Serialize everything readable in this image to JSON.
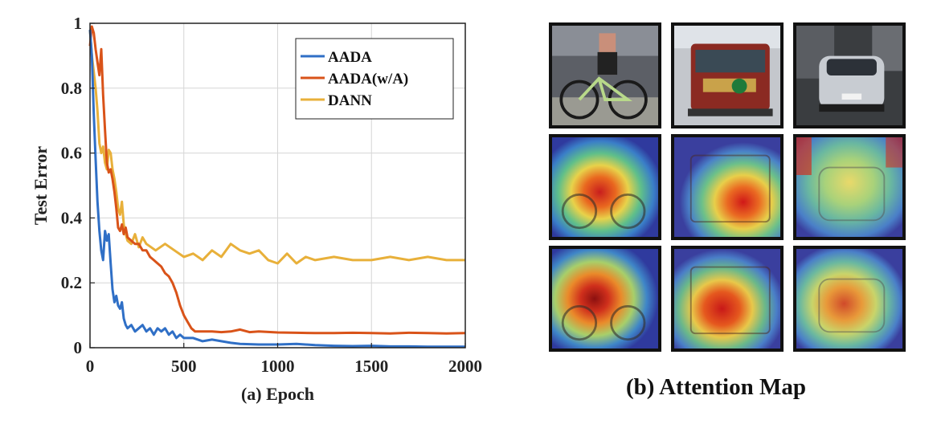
{
  "chart_data": {
    "type": "line",
    "xlabel": "(a) Epoch",
    "ylabel": "Test Error",
    "xlim": [
      0,
      2000
    ],
    "ylim": [
      0,
      1
    ],
    "x_ticks": [
      "0",
      "500",
      "1000",
      "1500",
      "2000"
    ],
    "y_ticks": [
      "0",
      "0.2",
      "0.4",
      "0.6",
      "0.8",
      "1"
    ],
    "grid": true,
    "legend_position": "top-right",
    "series": [
      {
        "name": "AADA",
        "color": "#2f6fc6",
        "x": [
          0,
          10,
          20,
          30,
          40,
          50,
          60,
          70,
          80,
          90,
          100,
          110,
          120,
          130,
          140,
          150,
          160,
          170,
          180,
          190,
          200,
          220,
          240,
          260,
          280,
          300,
          320,
          340,
          360,
          380,
          400,
          420,
          440,
          460,
          480,
          500,
          550,
          600,
          650,
          700,
          750,
          800,
          900,
          1000,
          1100,
          1200,
          1300,
          1400,
          1500,
          1600,
          1700,
          1800,
          1900,
          2000
        ],
        "values": [
          0.98,
          0.9,
          0.72,
          0.58,
          0.45,
          0.36,
          0.3,
          0.27,
          0.36,
          0.33,
          0.35,
          0.26,
          0.18,
          0.14,
          0.16,
          0.13,
          0.12,
          0.14,
          0.09,
          0.07,
          0.06,
          0.07,
          0.05,
          0.06,
          0.07,
          0.05,
          0.06,
          0.04,
          0.06,
          0.05,
          0.06,
          0.04,
          0.05,
          0.03,
          0.04,
          0.03,
          0.03,
          0.02,
          0.025,
          0.02,
          0.015,
          0.012,
          0.01,
          0.01,
          0.012,
          0.008,
          0.006,
          0.005,
          0.006,
          0.004,
          0.004,
          0.003,
          0.003,
          0.003
        ]
      },
      {
        "name": "AADA(w/A)",
        "color": "#d95319",
        "x": [
          0,
          10,
          20,
          30,
          40,
          50,
          60,
          70,
          80,
          90,
          100,
          110,
          120,
          130,
          140,
          150,
          160,
          170,
          180,
          190,
          200,
          220,
          240,
          260,
          280,
          300,
          320,
          340,
          360,
          380,
          400,
          420,
          440,
          460,
          480,
          500,
          520,
          540,
          560,
          600,
          650,
          700,
          750,
          800,
          850,
          900,
          1000,
          1100,
          1200,
          1300,
          1400,
          1500,
          1600,
          1700,
          1800,
          1900,
          2000
        ],
        "values": [
          0.93,
          0.99,
          0.97,
          0.92,
          0.88,
          0.84,
          0.92,
          0.78,
          0.67,
          0.57,
          0.54,
          0.55,
          0.52,
          0.48,
          0.43,
          0.37,
          0.36,
          0.38,
          0.35,
          0.37,
          0.34,
          0.33,
          0.32,
          0.32,
          0.3,
          0.3,
          0.28,
          0.27,
          0.26,
          0.25,
          0.23,
          0.22,
          0.2,
          0.17,
          0.13,
          0.1,
          0.08,
          0.06,
          0.05,
          0.05,
          0.05,
          0.048,
          0.05,
          0.056,
          0.048,
          0.05,
          0.047,
          0.046,
          0.045,
          0.045,
          0.046,
          0.045,
          0.044,
          0.046,
          0.045,
          0.044,
          0.045
        ]
      },
      {
        "name": "DANN",
        "color": "#e8b03a",
        "x": [
          0,
          10,
          20,
          30,
          40,
          50,
          60,
          70,
          80,
          90,
          100,
          110,
          120,
          130,
          140,
          150,
          160,
          170,
          180,
          190,
          200,
          220,
          240,
          260,
          280,
          300,
          350,
          400,
          450,
          500,
          550,
          600,
          650,
          700,
          750,
          800,
          850,
          900,
          950,
          1000,
          1050,
          1100,
          1150,
          1200,
          1300,
          1400,
          1500,
          1600,
          1700,
          1800,
          1900,
          2000
        ],
        "values": [
          0.98,
          0.9,
          0.85,
          0.8,
          0.73,
          0.63,
          0.6,
          0.62,
          0.57,
          0.55,
          0.61,
          0.6,
          0.55,
          0.52,
          0.48,
          0.43,
          0.41,
          0.45,
          0.38,
          0.35,
          0.33,
          0.32,
          0.35,
          0.31,
          0.34,
          0.32,
          0.3,
          0.32,
          0.3,
          0.28,
          0.29,
          0.27,
          0.3,
          0.28,
          0.32,
          0.3,
          0.29,
          0.3,
          0.27,
          0.26,
          0.29,
          0.26,
          0.28,
          0.27,
          0.28,
          0.27,
          0.27,
          0.28,
          0.27,
          0.28,
          0.27,
          0.27
        ]
      }
    ]
  },
  "attention_panel": {
    "caption": "(b) Attention Map",
    "rows": [
      [
        "bicycle-photo",
        "bus-photo",
        "car-photo"
      ],
      [
        "bicycle-attention-map-1",
        "bus-attention-map-1",
        "car-attention-map-1"
      ],
      [
        "bicycle-attention-map-2",
        "bus-attention-map-2",
        "car-attention-map-2"
      ]
    ]
  }
}
